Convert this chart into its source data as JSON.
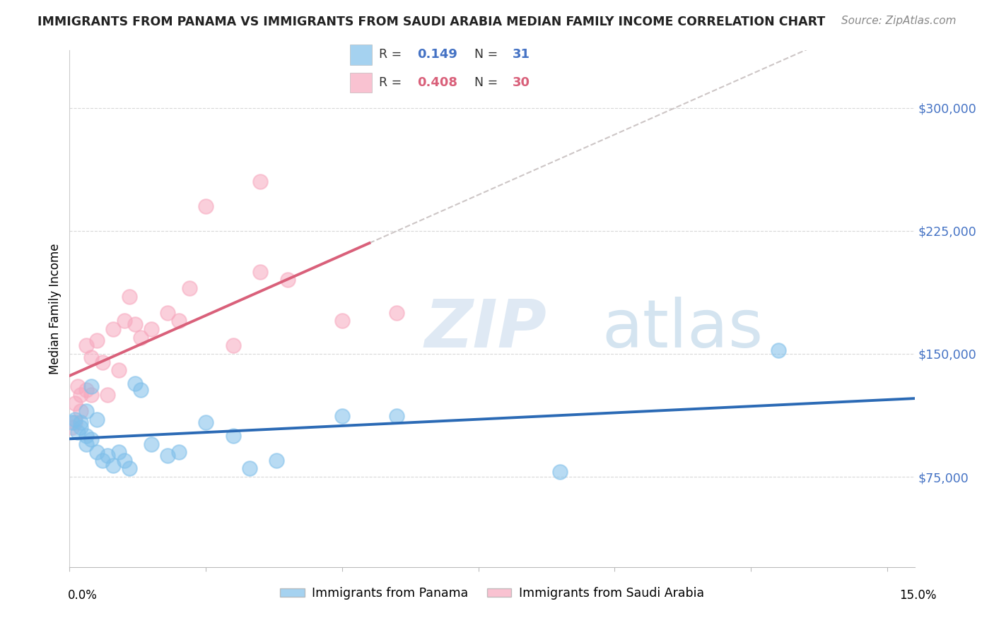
{
  "title": "IMMIGRANTS FROM PANAMA VS IMMIGRANTS FROM SAUDI ARABIA MEDIAN FAMILY INCOME CORRELATION CHART",
  "source": "Source: ZipAtlas.com",
  "ylabel": "Median Family Income",
  "ytick_labels": [
    "$75,000",
    "$150,000",
    "$225,000",
    "$300,000"
  ],
  "ytick_values": [
    75000,
    150000,
    225000,
    300000
  ],
  "ylim": [
    20000,
    335000
  ],
  "xlim": [
    0.0,
    0.155
  ],
  "watermark": "ZIPatlas",
  "blue_scatter": "#7fbfea",
  "pink_scatter": "#f7a8be",
  "blue_line_color": "#2b6ab5",
  "pink_line_color": "#d9607a",
  "dashed_line_color": "#c8c0c0",
  "right_label_color": "#4472C4",
  "panama_x": [
    0.0005,
    0.001,
    0.0015,
    0.002,
    0.002,
    0.003,
    0.003,
    0.003,
    0.004,
    0.004,
    0.005,
    0.005,
    0.006,
    0.007,
    0.008,
    0.009,
    0.01,
    0.011,
    0.012,
    0.013,
    0.015,
    0.018,
    0.02,
    0.025,
    0.03,
    0.033,
    0.038,
    0.05,
    0.06,
    0.09,
    0.13
  ],
  "panama_y": [
    108000,
    110000,
    102000,
    108000,
    105000,
    115000,
    100000,
    95000,
    130000,
    98000,
    110000,
    90000,
    85000,
    88000,
    82000,
    90000,
    85000,
    80000,
    132000,
    128000,
    95000,
    88000,
    90000,
    108000,
    100000,
    80000,
    85000,
    112000,
    112000,
    78000,
    152000
  ],
  "saudi_x": [
    0.0005,
    0.001,
    0.001,
    0.0015,
    0.002,
    0.002,
    0.003,
    0.003,
    0.004,
    0.004,
    0.005,
    0.006,
    0.007,
    0.008,
    0.009,
    0.01,
    0.011,
    0.012,
    0.013,
    0.015,
    0.018,
    0.02,
    0.022,
    0.025,
    0.03,
    0.035,
    0.04,
    0.05,
    0.06,
    0.035
  ],
  "saudi_y": [
    105000,
    120000,
    108000,
    130000,
    125000,
    115000,
    155000,
    128000,
    148000,
    125000,
    158000,
    145000,
    125000,
    165000,
    140000,
    170000,
    185000,
    168000,
    160000,
    165000,
    175000,
    170000,
    190000,
    240000,
    155000,
    200000,
    195000,
    170000,
    175000,
    255000
  ],
  "panama_r": 0.149,
  "saudi_r": 0.408,
  "panama_n": 31,
  "saudi_n": 30
}
